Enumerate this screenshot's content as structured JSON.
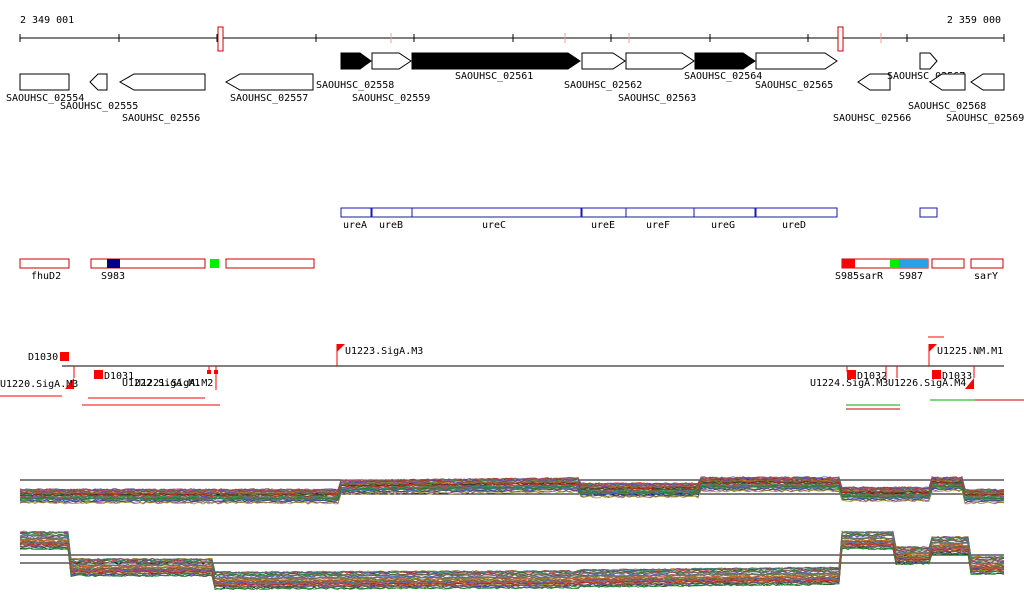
{
  "ruler": {
    "start_label": "2 349 001",
    "end_label": "2 359 000"
  },
  "genes": [
    {
      "label": "SAOUHSC_02554",
      "strand": "none",
      "highlight": false
    },
    {
      "label": "SAOUHSC_02555",
      "strand": "minus",
      "highlight": false
    },
    {
      "label": "SAOUHSC_02556",
      "strand": "minus",
      "highlight": false
    },
    {
      "label": "SAOUHSC_02557",
      "strand": "minus",
      "highlight": false
    },
    {
      "label": "SAOUHSC_02558",
      "strand": "plus",
      "highlight": true
    },
    {
      "label": "SAOUHSC_02559",
      "strand": "plus",
      "highlight": false
    },
    {
      "label": "SAOUHSC_02561",
      "strand": "plus",
      "highlight": true
    },
    {
      "label": "SAOUHSC_02562",
      "strand": "plus",
      "highlight": false
    },
    {
      "label": "SAOUHSC_02563",
      "strand": "plus",
      "highlight": false
    },
    {
      "label": "SAOUHSC_02564",
      "strand": "plus",
      "highlight": true
    },
    {
      "label": "SAOUHSC_02565",
      "strand": "plus",
      "highlight": false
    },
    {
      "label": "SAOUHSC_02566",
      "strand": "minus",
      "highlight": false
    },
    {
      "label": "SAOUHSC_02567",
      "strand": "plus",
      "highlight": false
    },
    {
      "label": "SAOUHSC_02568",
      "strand": "minus",
      "highlight": false
    },
    {
      "label": "SAOUHSC_02569",
      "strand": "minus",
      "highlight": false
    }
  ],
  "gene_names": [
    "ureA",
    "ureB",
    "ureC",
    "ureE",
    "ureF",
    "ureG",
    "ureD"
  ],
  "regulatory": [
    {
      "label": "fhuD2"
    },
    {
      "label": "S983"
    },
    {
      "label": "S985"
    },
    {
      "label": "sarR"
    },
    {
      "label": "S987"
    },
    {
      "label": "sarY"
    }
  ],
  "features": [
    {
      "label": "D1030"
    },
    {
      "label": "U1220.SigA.M3"
    },
    {
      "label": "D1031"
    },
    {
      "label": "U1221.SigA.M2"
    },
    {
      "label": "U1222.SigA.M1"
    },
    {
      "label": "U1223.SigA.M3"
    },
    {
      "label": "D1032"
    },
    {
      "label": "U1224.SigA.M3"
    },
    {
      "label": "U1226.SigA.M4"
    },
    {
      "label": "D1033"
    },
    {
      "label": "U1225.NM.M1"
    }
  ],
  "colors": {
    "gene_highlight": "#000000",
    "gene_outline": "#000000",
    "ure_outline": "#1a1aa8",
    "region_outline": "#cc0000",
    "feature_red": "#ff0000",
    "s983_fill": "#00008b",
    "green_fill": "#00ee00",
    "s987_fill": "#2aa0e8"
  }
}
